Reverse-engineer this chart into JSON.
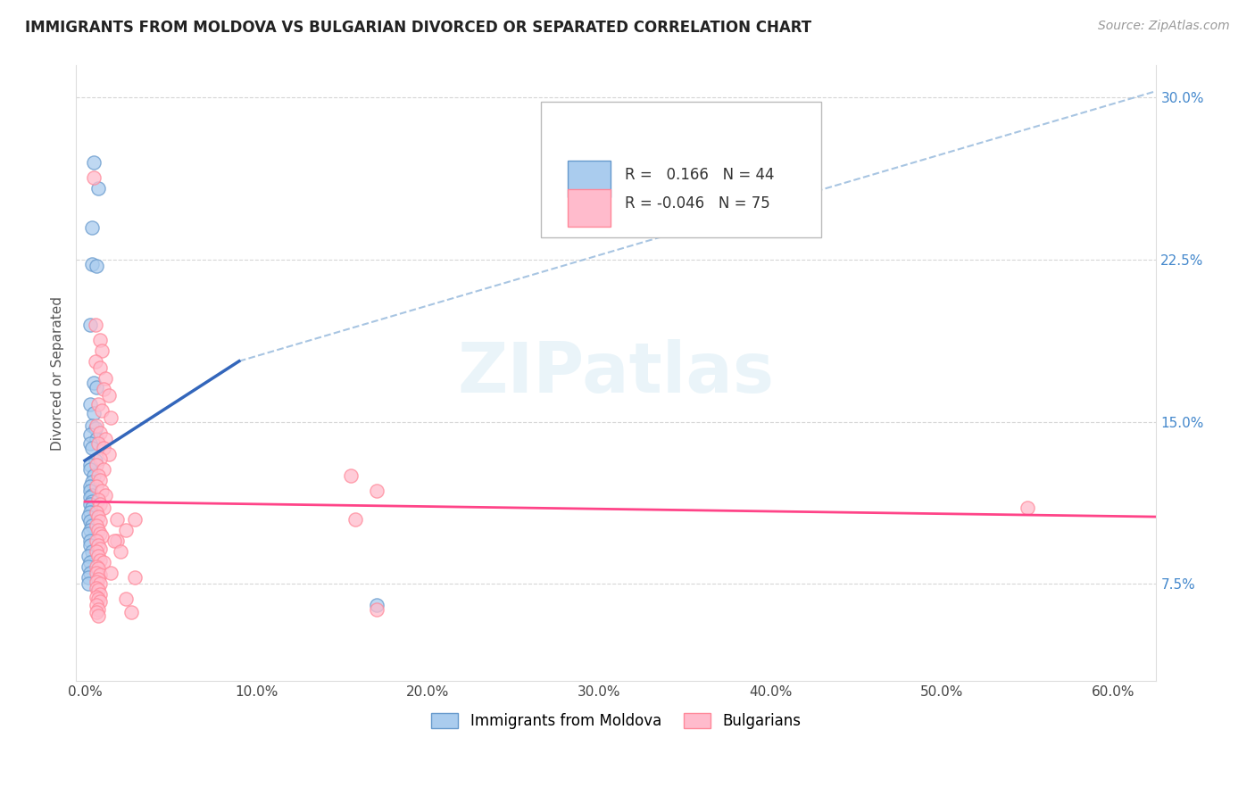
{
  "title": "IMMIGRANTS FROM MOLDOVA VS BULGARIAN DIVORCED OR SEPARATED CORRELATION CHART",
  "source": "Source: ZipAtlas.com",
  "xlabel_ticks": [
    "0.0%",
    "10.0%",
    "20.0%",
    "30.0%",
    "40.0%",
    "50.0%",
    "60.0%"
  ],
  "xlabel_vals": [
    0.0,
    0.1,
    0.2,
    0.3,
    0.4,
    0.5,
    0.6
  ],
  "ylabel_ticks": [
    "7.5%",
    "15.0%",
    "22.5%",
    "30.0%"
  ],
  "ylabel_vals": [
    0.075,
    0.15,
    0.225,
    0.3
  ],
  "ylim": [
    0.03,
    0.315
  ],
  "xlim": [
    -0.005,
    0.625
  ],
  "ylabel": "Divorced or Separated",
  "legend_label1": "Immigrants from Moldova",
  "legend_label2": "Bulgarians",
  "r1": 0.166,
  "n1": 44,
  "r2": -0.046,
  "n2": 75,
  "color1_fill": "#AACCEE",
  "color1_edge": "#6699CC",
  "color2_fill": "#FFBBCC",
  "color2_edge": "#FF8899",
  "trendline1_color": "#3366BB",
  "trendline2_color": "#FF4488",
  "trendline1_dash_color": "#99BBDD",
  "watermark_text": "ZIPatlas",
  "trendline1_x0": 0.0,
  "trendline1_y0": 0.132,
  "trendline1_x1": 0.09,
  "trendline1_y1": 0.178,
  "trendline1_xd0": 0.09,
  "trendline1_yd0": 0.178,
  "trendline1_xd1": 0.625,
  "trendline1_yd1": 0.303,
  "trendline2_x0": 0.0,
  "trendline2_y0": 0.113,
  "trendline2_x1": 0.625,
  "trendline2_y1": 0.106,
  "moldova_points": [
    [
      0.005,
      0.27
    ],
    [
      0.008,
      0.258
    ],
    [
      0.004,
      0.24
    ],
    [
      0.004,
      0.223
    ],
    [
      0.007,
      0.222
    ],
    [
      0.003,
      0.195
    ],
    [
      0.005,
      0.168
    ],
    [
      0.007,
      0.166
    ],
    [
      0.003,
      0.158
    ],
    [
      0.005,
      0.154
    ],
    [
      0.004,
      0.148
    ],
    [
      0.006,
      0.147
    ],
    [
      0.003,
      0.144
    ],
    [
      0.007,
      0.142
    ],
    [
      0.003,
      0.14
    ],
    [
      0.004,
      0.138
    ],
    [
      0.006,
      0.132
    ],
    [
      0.003,
      0.13
    ],
    [
      0.003,
      0.128
    ],
    [
      0.005,
      0.125
    ],
    [
      0.004,
      0.122
    ],
    [
      0.003,
      0.12
    ],
    [
      0.003,
      0.118
    ],
    [
      0.004,
      0.116
    ],
    [
      0.003,
      0.115
    ],
    [
      0.004,
      0.113
    ],
    [
      0.003,
      0.112
    ],
    [
      0.004,
      0.11
    ],
    [
      0.003,
      0.108
    ],
    [
      0.002,
      0.106
    ],
    [
      0.003,
      0.104
    ],
    [
      0.004,
      0.102
    ],
    [
      0.003,
      0.1
    ],
    [
      0.002,
      0.098
    ],
    [
      0.003,
      0.095
    ],
    [
      0.003,
      0.093
    ],
    [
      0.004,
      0.09
    ],
    [
      0.002,
      0.088
    ],
    [
      0.003,
      0.085
    ],
    [
      0.002,
      0.083
    ],
    [
      0.003,
      0.08
    ],
    [
      0.002,
      0.078
    ],
    [
      0.002,
      0.075
    ],
    [
      0.17,
      0.065
    ]
  ],
  "bulgarian_points": [
    [
      0.005,
      0.263
    ],
    [
      0.006,
      0.195
    ],
    [
      0.009,
      0.188
    ],
    [
      0.01,
      0.183
    ],
    [
      0.006,
      0.178
    ],
    [
      0.009,
      0.175
    ],
    [
      0.012,
      0.17
    ],
    [
      0.011,
      0.165
    ],
    [
      0.014,
      0.162
    ],
    [
      0.008,
      0.158
    ],
    [
      0.01,
      0.155
    ],
    [
      0.015,
      0.152
    ],
    [
      0.007,
      0.148
    ],
    [
      0.009,
      0.145
    ],
    [
      0.012,
      0.142
    ],
    [
      0.008,
      0.14
    ],
    [
      0.011,
      0.138
    ],
    [
      0.014,
      0.135
    ],
    [
      0.009,
      0.133
    ],
    [
      0.007,
      0.13
    ],
    [
      0.011,
      0.128
    ],
    [
      0.008,
      0.125
    ],
    [
      0.009,
      0.123
    ],
    [
      0.007,
      0.12
    ],
    [
      0.01,
      0.118
    ],
    [
      0.012,
      0.116
    ],
    [
      0.008,
      0.114
    ],
    [
      0.009,
      0.112
    ],
    [
      0.011,
      0.11
    ],
    [
      0.007,
      0.108
    ],
    [
      0.008,
      0.106
    ],
    [
      0.009,
      0.104
    ],
    [
      0.007,
      0.102
    ],
    [
      0.008,
      0.1
    ],
    [
      0.009,
      0.098
    ],
    [
      0.01,
      0.097
    ],
    [
      0.007,
      0.095
    ],
    [
      0.008,
      0.093
    ],
    [
      0.009,
      0.091
    ],
    [
      0.007,
      0.09
    ],
    [
      0.008,
      0.088
    ],
    [
      0.009,
      0.086
    ],
    [
      0.011,
      0.085
    ],
    [
      0.007,
      0.083
    ],
    [
      0.008,
      0.082
    ],
    [
      0.007,
      0.08
    ],
    [
      0.009,
      0.079
    ],
    [
      0.008,
      0.077
    ],
    [
      0.007,
      0.076
    ],
    [
      0.009,
      0.075
    ],
    [
      0.007,
      0.073
    ],
    [
      0.008,
      0.072
    ],
    [
      0.009,
      0.07
    ],
    [
      0.007,
      0.069
    ],
    [
      0.008,
      0.068
    ],
    [
      0.009,
      0.067
    ],
    [
      0.007,
      0.065
    ],
    [
      0.008,
      0.063
    ],
    [
      0.007,
      0.062
    ],
    [
      0.008,
      0.06
    ],
    [
      0.019,
      0.105
    ],
    [
      0.024,
      0.1
    ],
    [
      0.029,
      0.105
    ],
    [
      0.019,
      0.095
    ],
    [
      0.017,
      0.095
    ],
    [
      0.021,
      0.09
    ],
    [
      0.015,
      0.08
    ],
    [
      0.029,
      0.078
    ],
    [
      0.024,
      0.068
    ],
    [
      0.155,
      0.125
    ],
    [
      0.158,
      0.105
    ],
    [
      0.17,
      0.118
    ],
    [
      0.55,
      0.11
    ],
    [
      0.17,
      0.063
    ],
    [
      0.027,
      0.062
    ]
  ]
}
